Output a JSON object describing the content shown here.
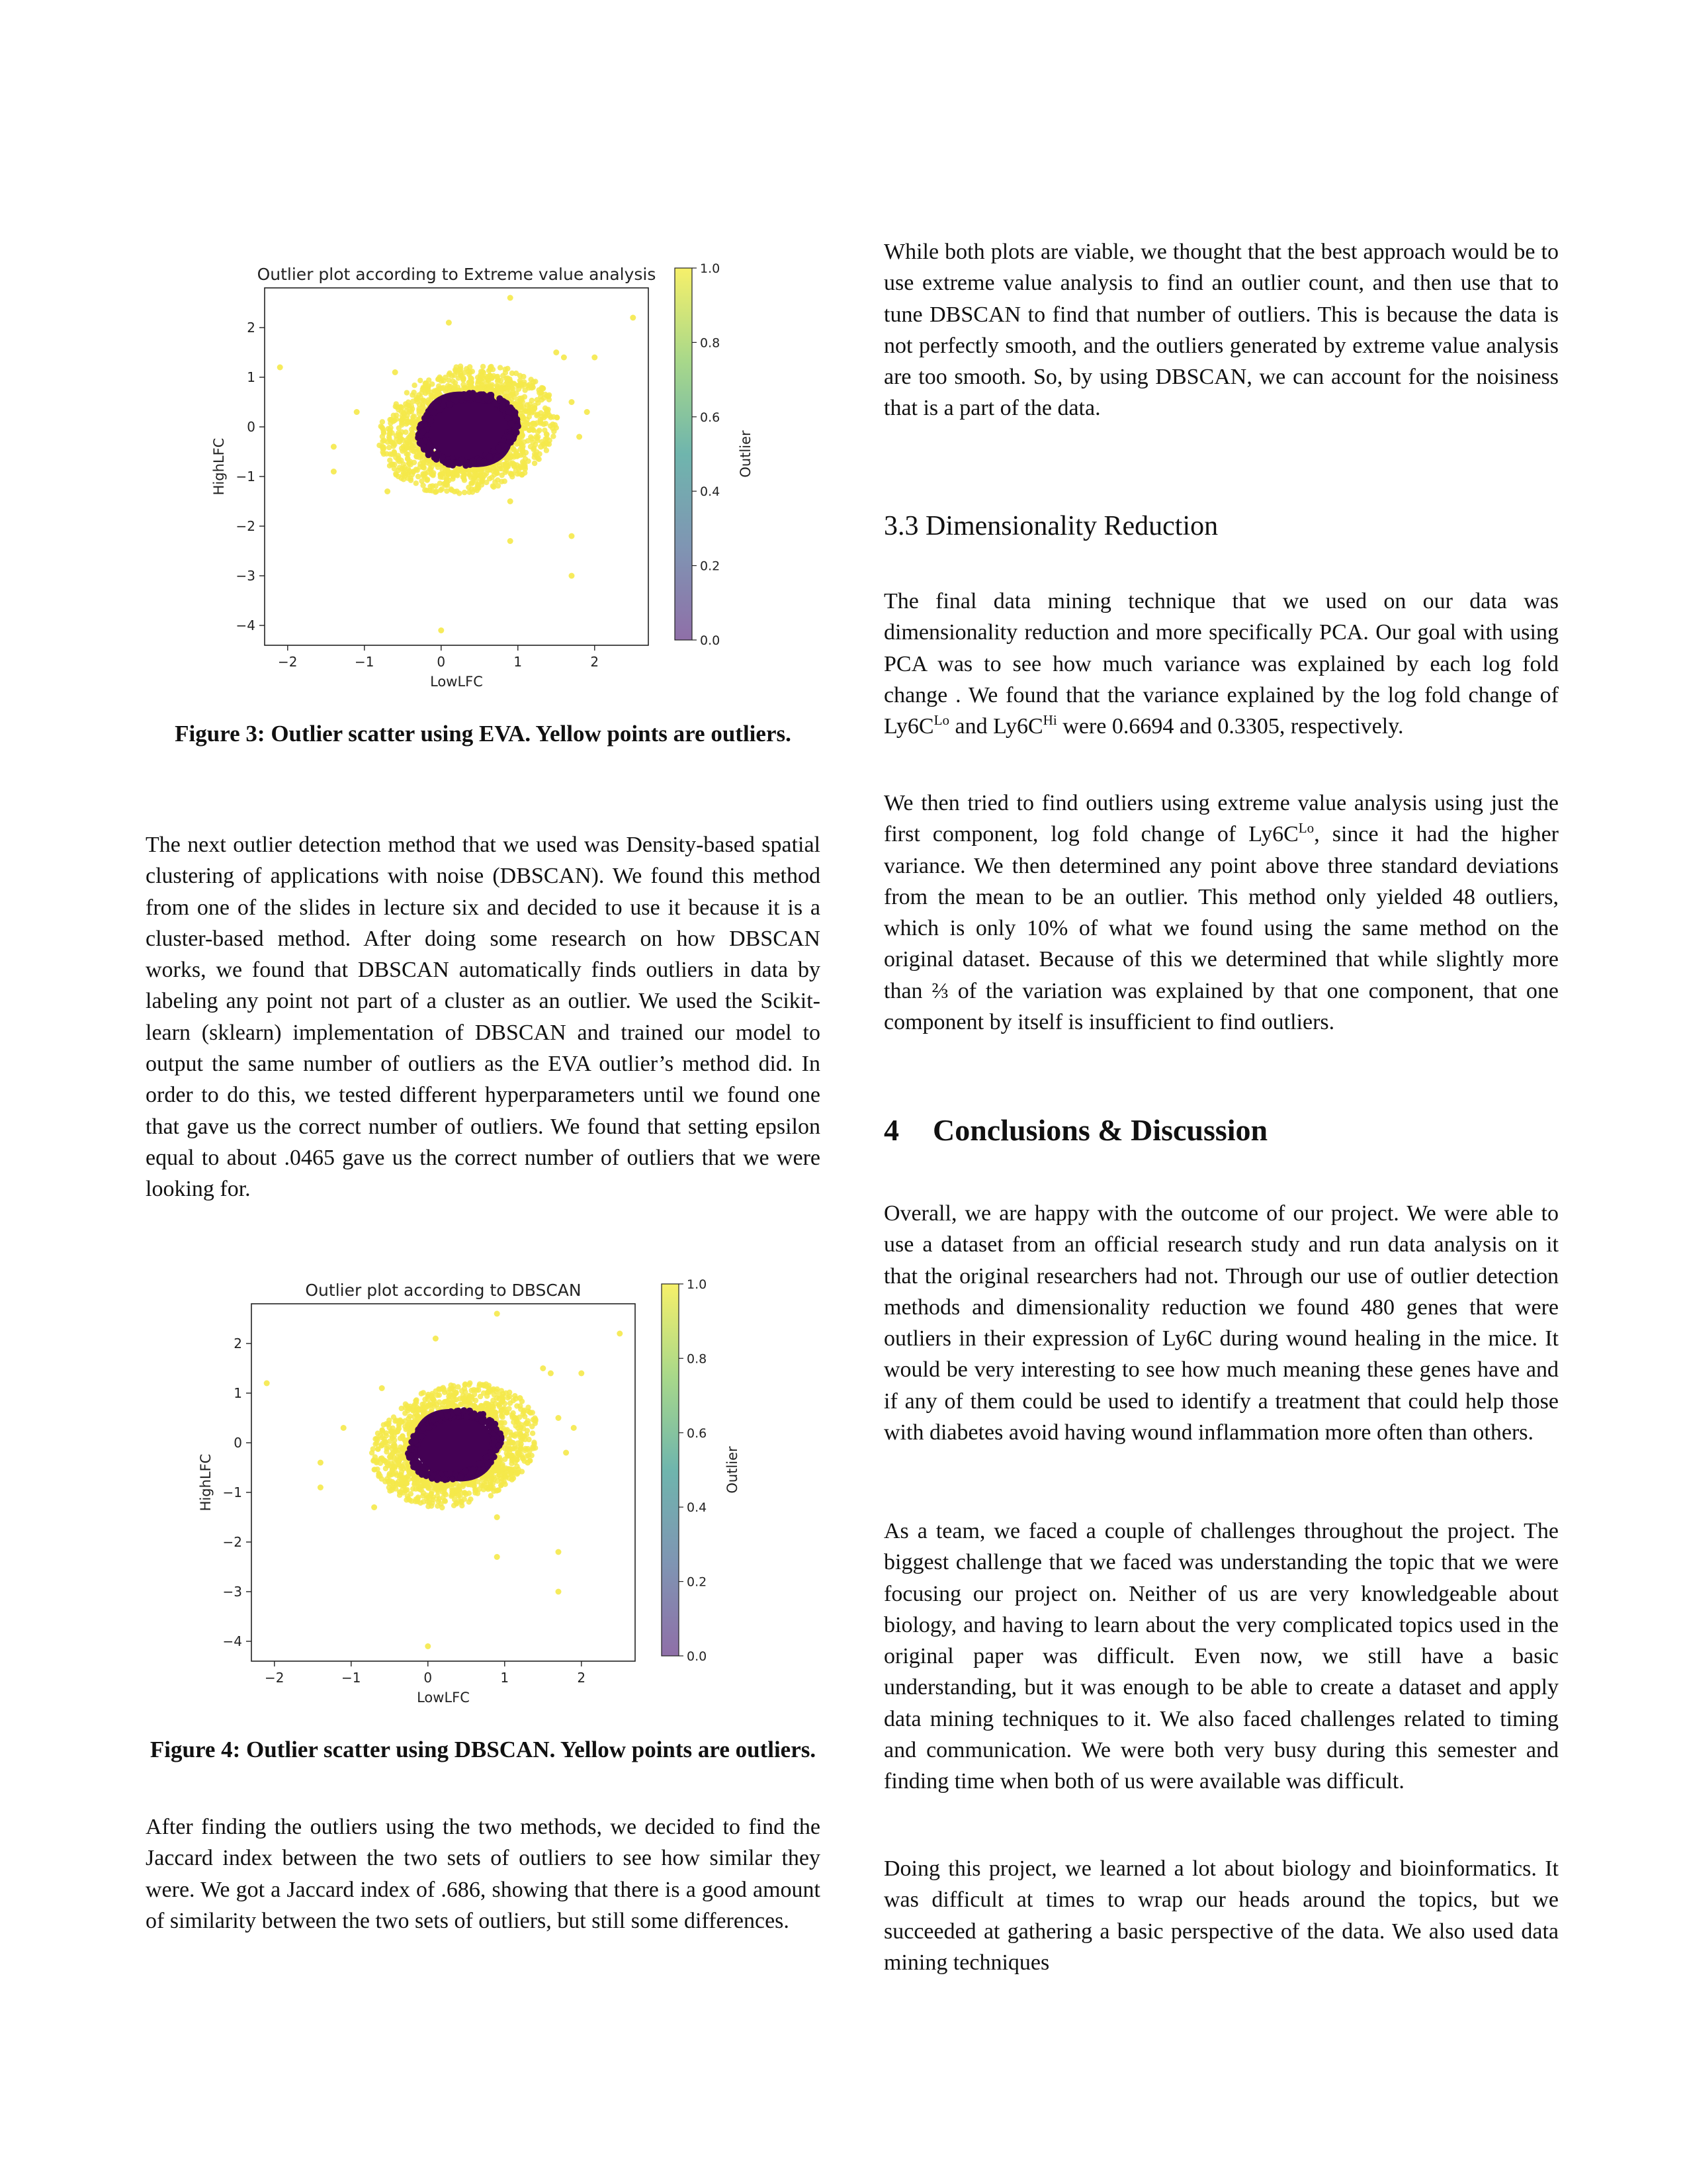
{
  "figure3": {
    "chart_data": {
      "type": "scatter",
      "title": "Outlier plot according to Extreme value analysis",
      "xlabel": "LowLFC",
      "ylabel": "HighLFC",
      "colorbar_label": "Outlier",
      "x_ticks": [
        "−2",
        "−1",
        "0",
        "1",
        "2"
      ],
      "y_ticks": [
        "2",
        "1",
        "0",
        "−1",
        "−2",
        "−3",
        "−4"
      ],
      "colorbar_ticks": [
        "1.0",
        "0.8",
        "0.6",
        "0.4",
        "0.2",
        "0.0"
      ],
      "xlim": [
        -2.3,
        2.7
      ],
      "ylim": [
        -4.4,
        2.8
      ],
      "colors": {
        "outlier": "#f5e94a",
        "inlier": "#440154"
      },
      "inlier_ellipse": {
        "cx": 0.35,
        "cy": -0.05,
        "rx": 0.6,
        "ry": 0.72,
        "rotate_deg": -25
      },
      "outlier_points": [
        [
          -2.1,
          1.2
        ],
        [
          0.9,
          2.6
        ],
        [
          2.5,
          2.2
        ],
        [
          0.1,
          2.1
        ],
        [
          1.5,
          1.5
        ],
        [
          1.6,
          1.4
        ],
        [
          2.0,
          1.4
        ],
        [
          -0.7,
          -1.3
        ],
        [
          0.9,
          -1.5
        ],
        [
          1.7,
          -2.2
        ],
        [
          0.9,
          -2.3
        ],
        [
          1.7,
          -3.0
        ],
        [
          0.0,
          -4.1
        ],
        [
          1.7,
          0.5
        ],
        [
          1.9,
          0.3
        ],
        [
          -1.4,
          -0.4
        ],
        [
          -1.4,
          -0.9
        ],
        [
          1.3,
          -0.4
        ],
        [
          1.8,
          -0.2
        ],
        [
          -1.1,
          0.3
        ],
        [
          1.2,
          0.9
        ],
        [
          -0.6,
          1.1
        ]
      ]
    }
  },
  "figure4": {
    "chart_data": {
      "type": "scatter",
      "title": "Outlier plot according to DBSCAN",
      "xlabel": "LowLFC",
      "ylabel": "HighLFC",
      "colorbar_label": "Outlier",
      "x_ticks": [
        "−2",
        "−1",
        "0",
        "1",
        "2"
      ],
      "y_ticks": [
        "2",
        "1",
        "0",
        "−1",
        "−2",
        "−3",
        "−4"
      ],
      "colorbar_ticks": [
        "1.0",
        "0.8",
        "0.6",
        "0.4",
        "0.2",
        "0.0"
      ],
      "xlim": [
        -2.3,
        2.7
      ],
      "ylim": [
        -4.4,
        2.8
      ],
      "colors": {
        "outlier": "#f5e94a",
        "inlier": "#440154"
      },
      "inlier_ellipse": {
        "cx": 0.35,
        "cy": -0.05,
        "rx": 0.55,
        "ry": 0.7,
        "rotate_deg": -25
      },
      "outlier_points": [
        [
          -2.1,
          1.2
        ],
        [
          0.9,
          2.6
        ],
        [
          2.5,
          2.2
        ],
        [
          0.1,
          2.1
        ],
        [
          1.5,
          1.5
        ],
        [
          1.6,
          1.4
        ],
        [
          2.0,
          1.4
        ],
        [
          -0.7,
          -1.3
        ],
        [
          0.9,
          -1.5
        ],
        [
          1.7,
          -2.2
        ],
        [
          0.9,
          -2.3
        ],
        [
          1.7,
          -3.0
        ],
        [
          0.0,
          -4.1
        ],
        [
          1.7,
          0.5
        ],
        [
          1.9,
          0.3
        ],
        [
          -1.4,
          -0.4
        ],
        [
          -1.4,
          -0.9
        ],
        [
          1.3,
          -0.4
        ],
        [
          1.8,
          -0.2
        ],
        [
          -1.1,
          0.3
        ],
        [
          1.2,
          0.9
        ],
        [
          -0.6,
          1.1
        ]
      ]
    }
  },
  "captions": {
    "fig3": "Figure 3: Outlier scatter using EVA. Yellow points are outliers.",
    "fig4": "Figure 4: Outlier scatter using DBSCAN. Yellow points are outliers."
  },
  "left": {
    "p1": "The next outlier detection method that we used was Density-based spatial clustering of applications with noise (DBSCAN). We found this method from one of the slides in lecture six and decided to use it because it is a cluster-based method. After doing some research on how DBSCAN works, we found that DBSCAN automatically finds outliers in data by labeling any point not part of a cluster as an outlier. We used the Scikit-learn (sklearn) implementation of DBSCAN and trained our model to output the same number of outliers as the EVA outlier’s method did. In order to do this, we tested different hyperparameters until we found one that gave us the correct number of outliers. We found that setting epsilon equal to about .0465 gave us the correct number of outliers that we were looking for.",
    "p2": "After finding the outliers using the two methods, we decided to find the Jaccard index between the two sets of outliers to see how similar they were. We got a Jaccard index of .686, showing that there is a good amount of similarity between the two sets of outliers, but still some differences."
  },
  "right": {
    "p1": "While both plots are viable, we thought that the best approach would be to use extreme value analysis to find an outlier count, and then use that to tune DBSCAN to find that number of outliers. This is because the data is not perfectly smooth, and the outliers generated by extreme value analysis are too smooth. So, by using DBSCAN, we can account for the noisiness that is a part of  the data.",
    "h33": "3.3  Dimensionality Reduction",
    "p2a": "The final data mining technique that we used on our data was dimensionality reduction and more specifically PCA. Our goal with using PCA was to see how much variance was explained by each log fold change . We found that the variance explained by the log fold change of Ly6C",
    "p2_sup1": "Lo",
    "p2b": " and Ly6C",
    "p2_sup2": "Hi",
    "p2c": " were  0.6694 and 0.3305, respectively.",
    "p3a": "We then tried to find outliers using extreme value analysis using just the first component, log fold change of Ly6C",
    "p3_sup": "Lo",
    "p3b": ", since it had the higher variance. We then determined any point above three standard deviations from the mean to be an outlier. This method only yielded 48 outliers, which is only 10% of what we found using the same method on the original dataset. Because of this we determined that while slightly more than ⅔ of the variation was explained by that one component, that one component by itself is insufficient to find outliers.",
    "h4_num": "4",
    "h4_text": "Conclusions & Discussion",
    "p4": "Overall, we are happy with the outcome of our project. We were able to use a dataset from an official research study and run data analysis on it that the original researchers had not. Through our use of outlier detection methods and dimensionality reduction we found 480 genes that were outliers in their expression of Ly6C during wound healing in the mice. It would be very interesting to see how much meaning these genes have and if any of them could  be used to identify a treatment that could help those with diabetes avoid having wound inflammation more often than others.",
    "p5": "As a team, we faced a couple of challenges throughout the project. The biggest challenge that we faced was understanding the topic that we were focusing our project on. Neither of us are very knowledgeable about biology, and having to learn about the very complicated topics used in the original paper was difficult. Even now, we still have a basic understanding, but it was enough to be able to create a dataset and apply data mining techniques to it. We also faced challenges related to timing and communication. We were both very busy during this semester and finding time when both of us were available was difficult.",
    "p6": "Doing this project, we learned a lot about biology and bioinformatics. It was difficult at times to wrap our heads around the topics, but we succeeded at gathering a basic perspective of the data. We also used data mining techniques"
  }
}
